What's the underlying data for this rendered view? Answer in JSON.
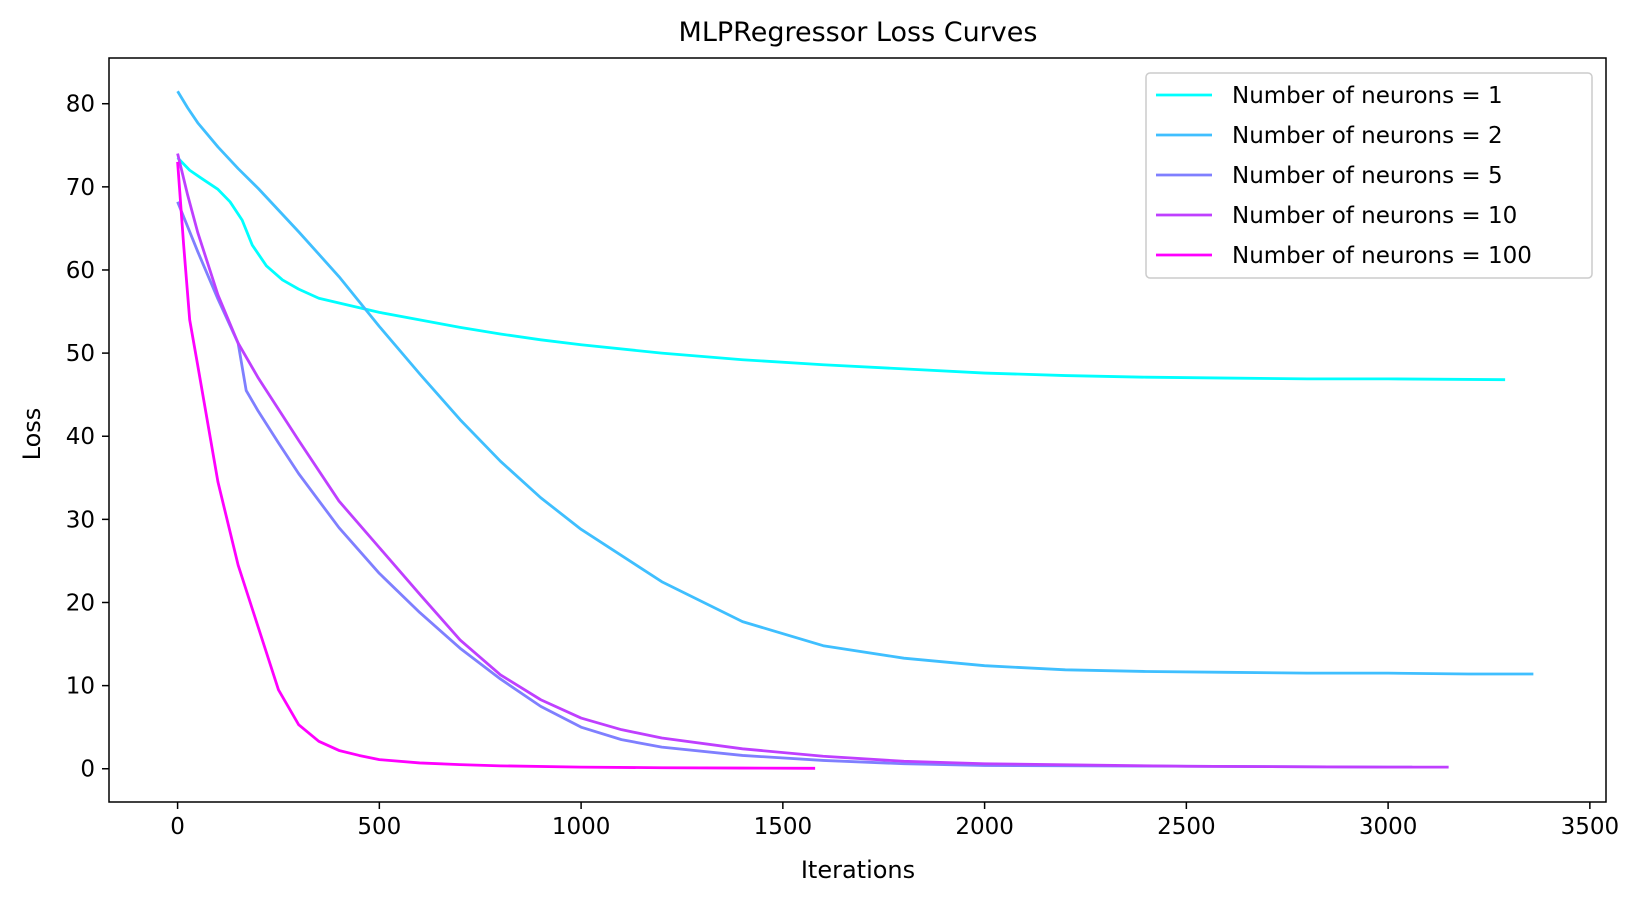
{
  "chart_data": {
    "type": "line",
    "title": "MLPRegressor Loss Curves",
    "xlabel": "Iterations",
    "ylabel": "Loss",
    "xlim": [
      -170,
      3540
    ],
    "ylim": [
      -4,
      85.5
    ],
    "xticks": [
      0,
      500,
      1000,
      1500,
      2000,
      2500,
      3000,
      3500
    ],
    "xtick_labels": [
      "0",
      "500",
      "1000",
      "1500",
      "2000",
      "2500",
      "3000",
      "3500"
    ],
    "yticks": [
      0,
      10,
      20,
      30,
      40,
      50,
      60,
      70,
      80
    ],
    "ytick_labels": [
      "0",
      "10",
      "20",
      "30",
      "40",
      "50",
      "60",
      "70",
      "80"
    ],
    "grid": false,
    "legend_position": "top-right",
    "series": [
      {
        "name": "Number of neurons = 1",
        "color": "#00ffff",
        "points": [
          [
            0,
            73.5
          ],
          [
            30,
            72.0
          ],
          [
            60,
            71.0
          ],
          [
            100,
            69.7
          ],
          [
            130,
            68.2
          ],
          [
            160,
            66.0
          ],
          [
            185,
            63.0
          ],
          [
            220,
            60.5
          ],
          [
            260,
            58.8
          ],
          [
            300,
            57.7
          ],
          [
            350,
            56.6
          ],
          [
            420,
            55.8
          ],
          [
            500,
            54.9
          ],
          [
            600,
            54.0
          ],
          [
            700,
            53.1
          ],
          [
            800,
            52.3
          ],
          [
            900,
            51.6
          ],
          [
            1000,
            51.0
          ],
          [
            1200,
            50.0
          ],
          [
            1400,
            49.2
          ],
          [
            1600,
            48.6
          ],
          [
            1800,
            48.1
          ],
          [
            2000,
            47.6
          ],
          [
            2200,
            47.3
          ],
          [
            2400,
            47.1
          ],
          [
            2600,
            47.0
          ],
          [
            2800,
            46.9
          ],
          [
            3000,
            46.9
          ],
          [
            3290,
            46.8
          ]
        ]
      },
      {
        "name": "Number of neurons = 2",
        "color": "#3fbfff",
        "points": [
          [
            0,
            81.5
          ],
          [
            25,
            79.5
          ],
          [
            50,
            77.7
          ],
          [
            100,
            74.8
          ],
          [
            150,
            72.2
          ],
          [
            200,
            69.8
          ],
          [
            300,
            64.6
          ],
          [
            400,
            59.2
          ],
          [
            500,
            53.2
          ],
          [
            600,
            47.5
          ],
          [
            700,
            42.0
          ],
          [
            800,
            37.0
          ],
          [
            900,
            32.6
          ],
          [
            1000,
            28.8
          ],
          [
            1200,
            22.5
          ],
          [
            1400,
            17.7
          ],
          [
            1600,
            14.8
          ],
          [
            1800,
            13.3
          ],
          [
            2000,
            12.4
          ],
          [
            2200,
            11.9
          ],
          [
            2400,
            11.7
          ],
          [
            2600,
            11.6
          ],
          [
            2800,
            11.5
          ],
          [
            3000,
            11.5
          ],
          [
            3200,
            11.4
          ],
          [
            3360,
            11.4
          ]
        ]
      },
      {
        "name": "Number of neurons = 5",
        "color": "#7f7fff",
        "points": [
          [
            0,
            68.2
          ],
          [
            25,
            65.2
          ],
          [
            50,
            62.2
          ],
          [
            100,
            56.5
          ],
          [
            150,
            51.2
          ],
          [
            170,
            45.5
          ],
          [
            200,
            43.0
          ],
          [
            250,
            39.2
          ],
          [
            300,
            35.5
          ],
          [
            400,
            29.0
          ],
          [
            500,
            23.5
          ],
          [
            600,
            18.8
          ],
          [
            700,
            14.5
          ],
          [
            800,
            10.8
          ],
          [
            900,
            7.5
          ],
          [
            1000,
            5.0
          ],
          [
            1100,
            3.5
          ],
          [
            1200,
            2.6
          ],
          [
            1400,
            1.6
          ],
          [
            1600,
            1.0
          ],
          [
            1800,
            0.6
          ],
          [
            2000,
            0.4
          ],
          [
            2500,
            0.3
          ],
          [
            3000,
            0.2
          ],
          [
            3060,
            0.2
          ]
        ]
      },
      {
        "name": "Number of neurons = 10",
        "color": "#bf3fff",
        "points": [
          [
            0,
            74.0
          ],
          [
            25,
            69.0
          ],
          [
            50,
            64.5
          ],
          [
            100,
            57.0
          ],
          [
            150,
            51.2
          ],
          [
            200,
            47.0
          ],
          [
            300,
            39.5
          ],
          [
            400,
            32.2
          ],
          [
            500,
            26.6
          ],
          [
            600,
            21.0
          ],
          [
            700,
            15.5
          ],
          [
            800,
            11.3
          ],
          [
            900,
            8.3
          ],
          [
            1000,
            6.1
          ],
          [
            1100,
            4.7
          ],
          [
            1200,
            3.7
          ],
          [
            1400,
            2.4
          ],
          [
            1600,
            1.5
          ],
          [
            1800,
            0.9
          ],
          [
            2000,
            0.6
          ],
          [
            2500,
            0.3
          ],
          [
            3000,
            0.2
          ],
          [
            3150,
            0.2
          ]
        ]
      },
      {
        "name": "Number of neurons = 100",
        "color": "#ff00ff",
        "points": [
          [
            0,
            73.0
          ],
          [
            15,
            63.0
          ],
          [
            30,
            54.0
          ],
          [
            50,
            48.5
          ],
          [
            75,
            41.5
          ],
          [
            100,
            34.5
          ],
          [
            150,
            24.5
          ],
          [
            200,
            17.0
          ],
          [
            250,
            9.5
          ],
          [
            300,
            5.3
          ],
          [
            350,
            3.3
          ],
          [
            400,
            2.2
          ],
          [
            450,
            1.6
          ],
          [
            500,
            1.1
          ],
          [
            600,
            0.7
          ],
          [
            700,
            0.5
          ],
          [
            800,
            0.35
          ],
          [
            1000,
            0.2
          ],
          [
            1200,
            0.12
          ],
          [
            1400,
            0.08
          ],
          [
            1580,
            0.05
          ]
        ]
      }
    ]
  }
}
